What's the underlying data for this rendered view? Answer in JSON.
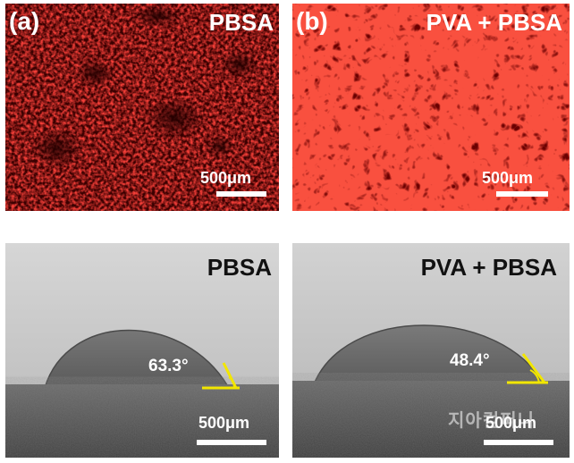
{
  "panels": {
    "a": {
      "letter": "(a)",
      "title": "PBSA",
      "scale": "500μm",
      "color": "#e8120c"
    },
    "b": {
      "letter": "(b)",
      "title": "PVA + PBSA",
      "scale": "500μm",
      "color": "#f01a10"
    },
    "c": {
      "title": "PBSA",
      "angle": "63.3°",
      "scale": "500μm"
    },
    "d": {
      "title": "PVA + PBSA",
      "angle": "48.4°",
      "scale": "500μm"
    }
  },
  "watermark": {
    "text": "지아컴퍼니"
  },
  "colors": {
    "angle_marker": "#f2e600",
    "scalebar": "#ffffff"
  }
}
